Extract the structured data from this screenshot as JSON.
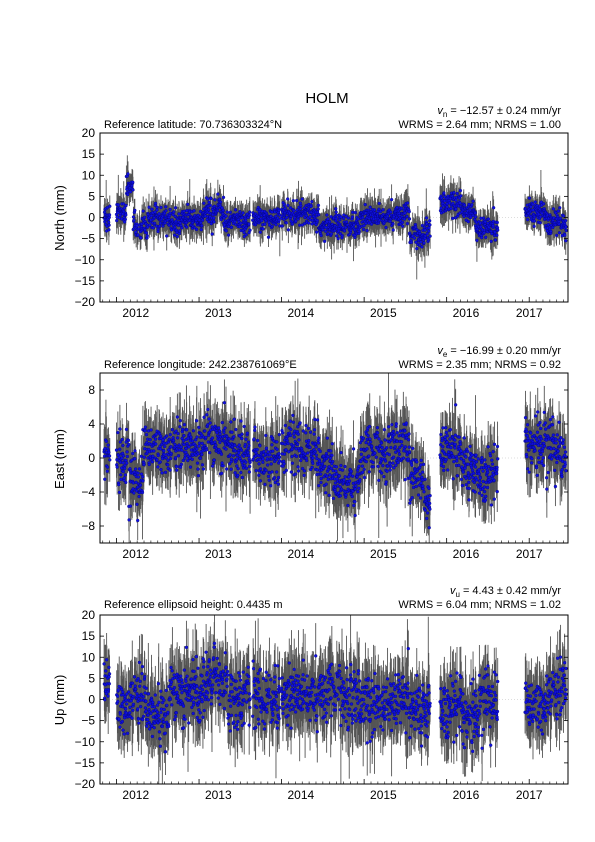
{
  "title": "HOLM",
  "x_tick_labels": [
    "2012",
    "2013",
    "2014",
    "2015",
    "2016",
    "2017"
  ],
  "chart_data": [
    {
      "type": "scatter",
      "panel": "north",
      "ylabel": "North (mm)",
      "ylim": [
        -20,
        20
      ],
      "yticks": [
        -20,
        -15,
        -10,
        -5,
        0,
        5,
        10,
        15,
        20
      ],
      "header_left": "Reference latitude: 70.736303324°N",
      "velocity_symbol": "v",
      "velocity_sub": "n",
      "velocity_text": " = −12.57 ± 0.24 mm/yr",
      "stats_text": "WRMS = 2.64 mm; NRMS = 1.00",
      "xlim": [
        2011.8,
        2017.47
      ],
      "point_color": "#1010dd",
      "errorbar_color": "#555555",
      "error_half_width_typical": 2.8,
      "segments": [
        {
          "start": 2011.85,
          "end": 2011.92,
          "level": 0.5
        },
        {
          "start": 2012.0,
          "end": 2012.12,
          "level": 1.5
        },
        {
          "start": 2012.12,
          "end": 2012.2,
          "level": 7.0
        },
        {
          "start": 2012.2,
          "end": 2012.38,
          "level": -2.5
        },
        {
          "start": 2012.38,
          "end": 2012.6,
          "level": -0.5
        },
        {
          "start": 2012.6,
          "end": 2013.05,
          "level": -0.8
        },
        {
          "start": 2013.05,
          "end": 2013.3,
          "level": 2.0
        },
        {
          "start": 2013.3,
          "end": 2013.62,
          "level": -1.0
        },
        {
          "start": 2013.65,
          "end": 2013.98,
          "level": -0.5
        },
        {
          "start": 2014.0,
          "end": 2014.45,
          "level": 0.8
        },
        {
          "start": 2014.45,
          "end": 2014.62,
          "level": -2.5
        },
        {
          "start": 2014.62,
          "end": 2014.95,
          "level": -2.0
        },
        {
          "start": 2014.95,
          "end": 2015.3,
          "level": 0.0
        },
        {
          "start": 2015.3,
          "end": 2015.55,
          "level": 0.5
        },
        {
          "start": 2015.55,
          "end": 2015.72,
          "level": -4.5
        },
        {
          "start": 2015.72,
          "end": 2015.8,
          "level": -3.0
        },
        {
          "start": 2015.92,
          "end": 2016.18,
          "level": 3.5
        },
        {
          "start": 2016.18,
          "end": 2016.35,
          "level": 1.5
        },
        {
          "start": 2016.35,
          "end": 2016.62,
          "level": -2.5
        },
        {
          "start": 2016.95,
          "end": 2017.2,
          "level": 1.5
        },
        {
          "start": 2017.2,
          "end": 2017.38,
          "level": -1.0
        },
        {
          "start": 2017.38,
          "end": 2017.45,
          "level": -2.5
        }
      ],
      "noise": 2.2
    },
    {
      "type": "scatter",
      "panel": "east",
      "ylabel": "East (mm)",
      "ylim": [
        -10,
        10
      ],
      "yticks": [
        -8,
        -4,
        0,
        4,
        8
      ],
      "header_left": "Reference longitude: 242.238761069°E",
      "velocity_symbol": "v",
      "velocity_sub": "e",
      "velocity_text": " = −16.99 ± 0.20 mm/yr",
      "stats_text": "WRMS = 2.35 mm; NRMS = 0.92",
      "xlim": [
        2011.8,
        2017.47
      ],
      "point_color": "#1010dd",
      "errorbar_color": "#555555",
      "error_half_width_typical": 2.6,
      "segments": [
        {
          "start": 2011.85,
          "end": 2011.92,
          "level": 1.0
        },
        {
          "start": 2012.0,
          "end": 2012.15,
          "level": 0.0
        },
        {
          "start": 2012.15,
          "end": 2012.32,
          "level": -3.5
        },
        {
          "start": 2012.32,
          "end": 2012.65,
          "level": 0.5
        },
        {
          "start": 2012.65,
          "end": 2013.05,
          "level": 1.0
        },
        {
          "start": 2013.05,
          "end": 2013.35,
          "level": 2.0
        },
        {
          "start": 2013.35,
          "end": 2013.62,
          "level": 1.0
        },
        {
          "start": 2013.65,
          "end": 2013.98,
          "level": 0.0
        },
        {
          "start": 2014.0,
          "end": 2014.45,
          "level": 1.0
        },
        {
          "start": 2014.45,
          "end": 2014.62,
          "level": -1.0
        },
        {
          "start": 2014.62,
          "end": 2014.95,
          "level": -3.0
        },
        {
          "start": 2014.95,
          "end": 2015.3,
          "level": 0.5
        },
        {
          "start": 2015.3,
          "end": 2015.55,
          "level": 1.5
        },
        {
          "start": 2015.55,
          "end": 2015.72,
          "level": -2.0
        },
        {
          "start": 2015.72,
          "end": 2015.8,
          "level": -5.0
        },
        {
          "start": 2015.92,
          "end": 2016.18,
          "level": 1.0
        },
        {
          "start": 2016.18,
          "end": 2016.35,
          "level": -1.0
        },
        {
          "start": 2016.35,
          "end": 2016.62,
          "level": -2.0
        },
        {
          "start": 2016.95,
          "end": 2017.2,
          "level": 2.0
        },
        {
          "start": 2017.2,
          "end": 2017.38,
          "level": 0.5
        },
        {
          "start": 2017.38,
          "end": 2017.45,
          "level": -1.0
        }
      ],
      "noise": 2.4
    },
    {
      "type": "scatter",
      "panel": "up",
      "ylabel": "Up (mm)",
      "ylim": [
        -20,
        20
      ],
      "yticks": [
        -20,
        -15,
        -10,
        -5,
        0,
        5,
        10,
        15,
        20
      ],
      "header_left": "Reference ellipsoid height: 0.4435 m",
      "velocity_symbol": "v",
      "velocity_sub": "u",
      "velocity_text": " = 4.43 ± 0.42 mm/yr",
      "stats_text": "WRMS = 6.04 mm; NRMS = 1.02",
      "xlim": [
        2011.8,
        2017.47
      ],
      "point_color": "#1010dd",
      "errorbar_color": "#555555",
      "error_half_width_typical": 6.0,
      "segments": [
        {
          "start": 2011.85,
          "end": 2011.92,
          "level": 3.0
        },
        {
          "start": 2012.0,
          "end": 2012.15,
          "level": -3.0
        },
        {
          "start": 2012.15,
          "end": 2012.35,
          "level": 0.0
        },
        {
          "start": 2012.35,
          "end": 2012.65,
          "level": -4.0
        },
        {
          "start": 2012.65,
          "end": 2013.05,
          "level": 2.0
        },
        {
          "start": 2013.05,
          "end": 2013.35,
          "level": 5.0
        },
        {
          "start": 2013.35,
          "end": 2013.62,
          "level": 0.0
        },
        {
          "start": 2013.65,
          "end": 2013.98,
          "level": 0.0
        },
        {
          "start": 2014.0,
          "end": 2014.45,
          "level": 1.0
        },
        {
          "start": 2014.45,
          "end": 2014.95,
          "level": 1.0
        },
        {
          "start": 2014.95,
          "end": 2015.3,
          "level": -1.0
        },
        {
          "start": 2015.3,
          "end": 2015.55,
          "level": 0.0
        },
        {
          "start": 2015.55,
          "end": 2015.8,
          "level": -2.0
        },
        {
          "start": 2015.92,
          "end": 2016.18,
          "level": -2.0
        },
        {
          "start": 2016.18,
          "end": 2016.35,
          "level": -3.0
        },
        {
          "start": 2016.35,
          "end": 2016.62,
          "level": -2.0
        },
        {
          "start": 2016.95,
          "end": 2017.2,
          "level": -3.0
        },
        {
          "start": 2017.2,
          "end": 2017.38,
          "level": 1.0
        },
        {
          "start": 2017.38,
          "end": 2017.45,
          "level": 2.0
        }
      ],
      "noise": 5.5
    }
  ]
}
